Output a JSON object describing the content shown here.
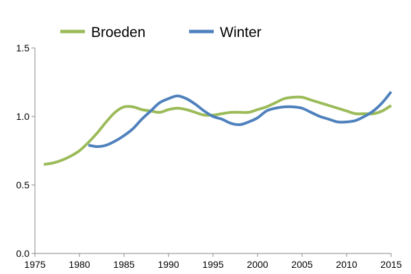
{
  "chart_data": {
    "type": "line",
    "title": "",
    "xlabel": "",
    "ylabel": "",
    "xlim": [
      1975,
      2015
    ],
    "ylim": [
      0.0,
      1.5
    ],
    "x_ticks": [
      1975,
      1980,
      1985,
      1990,
      1995,
      2000,
      2005,
      2010,
      2015
    ],
    "y_ticks": [
      0.0,
      0.5,
      1.0,
      1.5
    ],
    "x_tick_labels": [
      "1975",
      "1980",
      "1985",
      "1990",
      "1995",
      "2000",
      "2005",
      "2010",
      "2015"
    ],
    "y_tick_labels": [
      "0.0",
      "0.5",
      "1.0",
      "1.5"
    ],
    "grid": false,
    "legend_position": "top",
    "series": [
      {
        "name": "Broeden",
        "color": "#9BBB59",
        "points": [
          [
            1976,
            0.65
          ],
          [
            1977,
            0.66
          ],
          [
            1978,
            0.68
          ],
          [
            1979,
            0.71
          ],
          [
            1980,
            0.75
          ],
          [
            1981,
            0.81
          ],
          [
            1982,
            0.88
          ],
          [
            1983,
            0.96
          ],
          [
            1984,
            1.03
          ],
          [
            1985,
            1.07
          ],
          [
            1986,
            1.07
          ],
          [
            1987,
            1.05
          ],
          [
            1988,
            1.04
          ],
          [
            1989,
            1.03
          ],
          [
            1990,
            1.05
          ],
          [
            1991,
            1.06
          ],
          [
            1992,
            1.05
          ],
          [
            1993,
            1.03
          ],
          [
            1994,
            1.01
          ],
          [
            1995,
            1.01
          ],
          [
            1996,
            1.02
          ],
          [
            1997,
            1.03
          ],
          [
            1998,
            1.03
          ],
          [
            1999,
            1.03
          ],
          [
            2000,
            1.05
          ],
          [
            2001,
            1.07
          ],
          [
            2002,
            1.1
          ],
          [
            2003,
            1.13
          ],
          [
            2004,
            1.14
          ],
          [
            2005,
            1.14
          ],
          [
            2006,
            1.12
          ],
          [
            2007,
            1.1
          ],
          [
            2008,
            1.08
          ],
          [
            2009,
            1.06
          ],
          [
            2010,
            1.04
          ],
          [
            2011,
            1.02
          ],
          [
            2012,
            1.02
          ],
          [
            2013,
            1.02
          ],
          [
            2014,
            1.04
          ],
          [
            2015,
            1.08
          ]
        ]
      },
      {
        "name": "Winter",
        "color": "#4F81BD",
        "points": [
          [
            1981,
            0.79
          ],
          [
            1982,
            0.78
          ],
          [
            1983,
            0.79
          ],
          [
            1984,
            0.82
          ],
          [
            1985,
            0.86
          ],
          [
            1986,
            0.91
          ],
          [
            1987,
            0.98
          ],
          [
            1988,
            1.04
          ],
          [
            1989,
            1.1
          ],
          [
            1990,
            1.13
          ],
          [
            1991,
            1.15
          ],
          [
            1992,
            1.13
          ],
          [
            1993,
            1.09
          ],
          [
            1994,
            1.04
          ],
          [
            1995,
            1.0
          ],
          [
            1996,
            0.98
          ],
          [
            1997,
            0.95
          ],
          [
            1998,
            0.94
          ],
          [
            1999,
            0.96
          ],
          [
            2000,
            0.99
          ],
          [
            2001,
            1.04
          ],
          [
            2002,
            1.06
          ],
          [
            2003,
            1.07
          ],
          [
            2004,
            1.07
          ],
          [
            2005,
            1.06
          ],
          [
            2006,
            1.03
          ],
          [
            2007,
            1.0
          ],
          [
            2008,
            0.98
          ],
          [
            2009,
            0.96
          ],
          [
            2010,
            0.96
          ],
          [
            2011,
            0.97
          ],
          [
            2012,
            1.0
          ],
          [
            2013,
            1.04
          ],
          [
            2014,
            1.1
          ],
          [
            2015,
            1.18
          ]
        ]
      }
    ]
  }
}
